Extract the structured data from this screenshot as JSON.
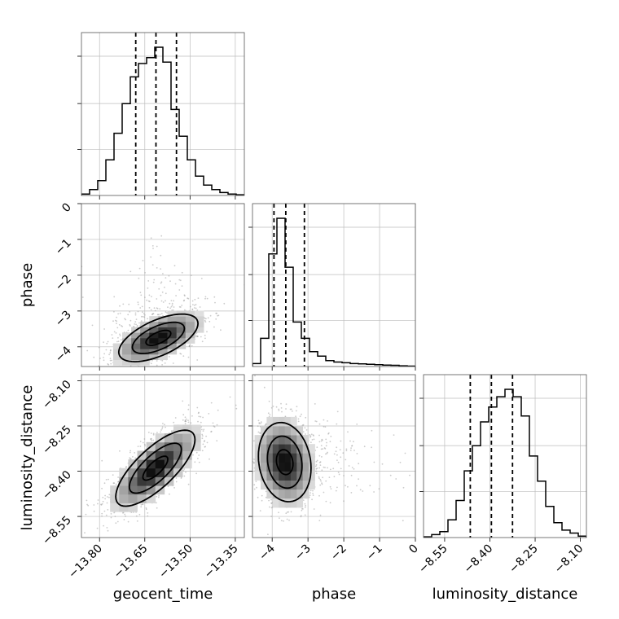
{
  "chart_data": {
    "type": "corner",
    "parameters": [
      "geocent_time",
      "phase",
      "luminosity_distance"
    ],
    "axes": {
      "geocent_time": {
        "range": [
          -13.86,
          -13.32
        ],
        "ticks": [
          -13.8,
          -13.65,
          -13.5,
          -13.35
        ],
        "tick_labels": [
          "−13.80",
          "−13.65",
          "−13.50",
          "−13.35"
        ]
      },
      "phase": {
        "range": [
          -4.55,
          0.0
        ],
        "ticks": [
          -4,
          -3,
          -2,
          -1,
          0
        ],
        "tick_labels": [
          "−4",
          "−3",
          "−2",
          "−1",
          "0"
        ]
      },
      "luminosity_distance": {
        "range": [
          -8.62,
          -8.08
        ],
        "ticks": [
          -8.55,
          -8.4,
          -8.25,
          -8.1
        ],
        "tick_labels": [
          "−8.55",
          "−8.40",
          "−8.25",
          "−8.10"
        ]
      }
    },
    "histograms": {
      "geocent_time": {
        "bin_edges": [
          -13.86,
          -13.833,
          -13.806,
          -13.779,
          -13.752,
          -13.725,
          -13.698,
          -13.671,
          -13.644,
          -13.617,
          -13.59,
          -13.563,
          -13.536,
          -13.509,
          -13.482,
          -13.455,
          -13.428,
          -13.401,
          -13.374,
          -13.347,
          -13.32
        ],
        "density": [
          0.01,
          0.04,
          0.1,
          0.24,
          0.42,
          0.62,
          0.8,
          0.89,
          0.93,
          1.0,
          0.9,
          0.58,
          0.4,
          0.24,
          0.13,
          0.07,
          0.04,
          0.02,
          0.01,
          0.005
        ],
        "quantiles": [
          -13.68,
          -13.613,
          -13.545
        ]
      },
      "phase": {
        "bin_edges": [
          -4.55,
          -4.3225,
          -4.095,
          -3.8675,
          -3.64,
          -3.4125,
          -3.185,
          -2.9575,
          -2.73,
          -2.5025,
          -2.275,
          -2.0475,
          -1.82,
          -1.5925,
          -1.365,
          -1.1375,
          -0.91,
          -0.6825,
          -0.455,
          -0.2275,
          0.0
        ],
        "density": [
          0.02,
          0.19,
          0.76,
          1.0,
          0.67,
          0.3,
          0.19,
          0.1,
          0.07,
          0.04,
          0.03,
          0.025,
          0.02,
          0.018,
          0.015,
          0.012,
          0.01,
          0.008,
          0.005,
          0.003
        ],
        "quantiles": [
          -3.95,
          -3.62,
          -3.1
        ]
      },
      "luminosity_distance": {
        "bin_edges": [
          -8.62,
          -8.593,
          -8.566,
          -8.539,
          -8.512,
          -8.485,
          -8.458,
          -8.431,
          -8.404,
          -8.377,
          -8.35,
          -8.323,
          -8.296,
          -8.269,
          -8.242,
          -8.215,
          -8.188,
          -8.161,
          -8.134,
          -8.107,
          -8.08
        ],
        "density": [
          0.005,
          0.02,
          0.04,
          0.12,
          0.25,
          0.45,
          0.62,
          0.78,
          0.88,
          0.95,
          1.0,
          0.95,
          0.82,
          0.55,
          0.38,
          0.21,
          0.1,
          0.05,
          0.03,
          0.01
        ],
        "quantiles": [
          -8.465,
          -8.395,
          -8.325
        ]
      }
    },
    "pairs": [
      {
        "x": "geocent_time",
        "y": "phase",
        "center": [
          -13.605,
          -3.75
        ],
        "spread": [
          0.075,
          0.38
        ],
        "correlation": 0.6
      },
      {
        "x": "geocent_time",
        "y": "luminosity_distance",
        "center": [
          -13.615,
          -8.39
        ],
        "spread": [
          0.075,
          0.072
        ],
        "correlation": 0.75
      },
      {
        "x": "phase",
        "y": "luminosity_distance",
        "center": [
          -3.65,
          -8.37
        ],
        "spread": [
          0.42,
          0.075
        ],
        "correlation": -0.15
      }
    ],
    "xlabels": [
      "geocent_time",
      "phase",
      "luminosity_distance"
    ],
    "ylabels": [
      "",
      "phase",
      "luminosity_distance"
    ]
  }
}
